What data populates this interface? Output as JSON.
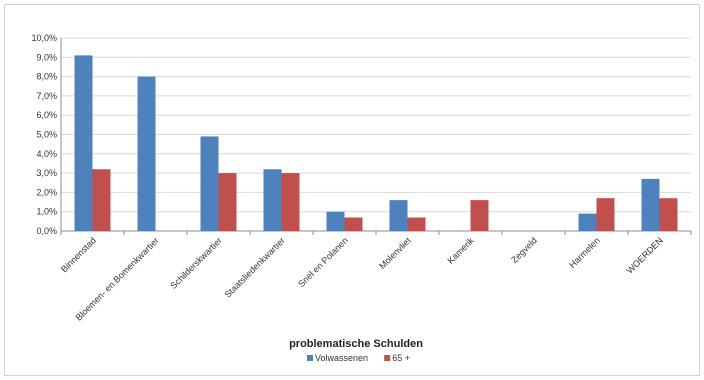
{
  "chart_data": {
    "type": "bar",
    "title": "",
    "xlabel": "problematische Schulden",
    "ylabel": "",
    "ylim": [
      0,
      10
    ],
    "yticks": [
      "0,0%",
      "1,0%",
      "2,0%",
      "3,0%",
      "4,0%",
      "5,0%",
      "6,0%",
      "7,0%",
      "8,0%",
      "9,0%",
      "10,0%"
    ],
    "grid": true,
    "legend_position": "bottom",
    "categories": [
      "Binnenstad",
      "Bloemen- en Bomenkwartier",
      "Schilderskwartier",
      "Staatsliedenkwartier",
      "Snel en Polanen",
      "Molenvliet",
      "Kamerik",
      "Zegveld",
      "Harmelen",
      "WOERDEN"
    ],
    "series": [
      {
        "name": "Volwassenen",
        "color": "#4f81bd",
        "values": [
          9.1,
          8.0,
          4.9,
          3.2,
          1.0,
          1.6,
          0.0,
          0.0,
          0.9,
          2.7
        ]
      },
      {
        "name": "65 +",
        "color": "#c0504d",
        "values": [
          3.2,
          0.0,
          3.0,
          3.0,
          0.7,
          0.7,
          1.6,
          0.0,
          1.7,
          1.7
        ]
      }
    ]
  }
}
